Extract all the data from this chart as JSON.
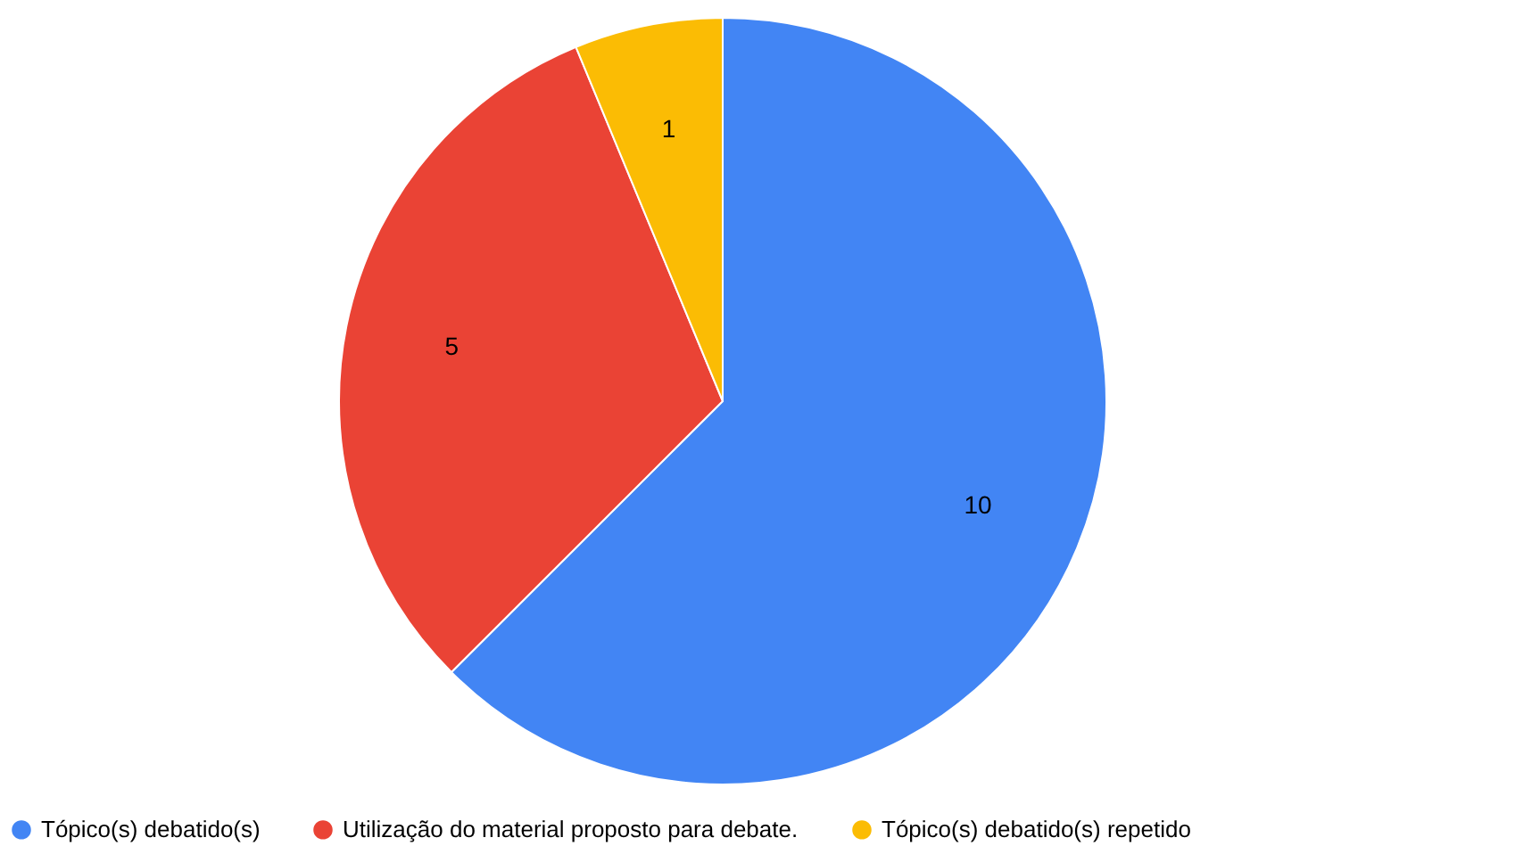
{
  "chart_data": {
    "type": "pie",
    "categories": [
      "Tópico(s) debatido(s)",
      "Utilização do material proposto para debate.",
      "Tópico(s) debatido(s) repetido"
    ],
    "values": [
      10,
      5,
      1
    ],
    "colors": [
      "#4285f4",
      "#ea4335",
      "#fbbc04"
    ],
    "data_labels": true,
    "legend": "bottom"
  }
}
